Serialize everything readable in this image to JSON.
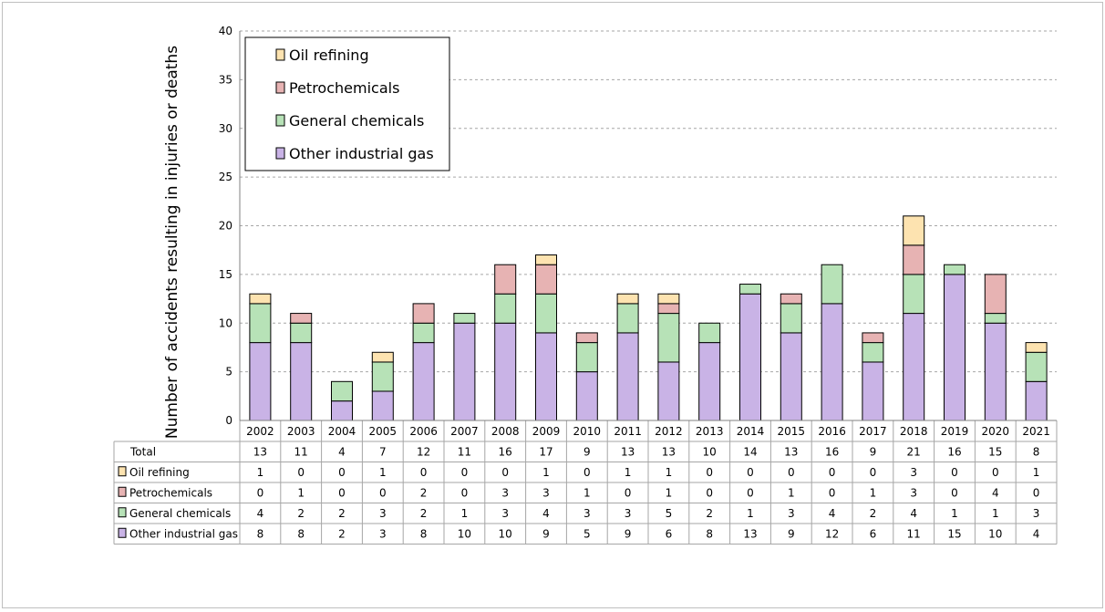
{
  "chart_data": {
    "type": "bar",
    "stacked": true,
    "title": "",
    "xlabel": "",
    "ylabel": "Number of accidents resulting in injuries or deaths",
    "ylim": [
      0,
      40
    ],
    "yticks": [
      0,
      5,
      10,
      15,
      20,
      25,
      30,
      35,
      40
    ],
    "grid": "horizontal dashed",
    "legend_position": "top-left",
    "categories": [
      "2002",
      "2003",
      "2004",
      "2005",
      "2006",
      "2007",
      "2008",
      "2009",
      "2010",
      "2011",
      "2012",
      "2013",
      "2014",
      "2015",
      "2016",
      "2017",
      "2018",
      "2019",
      "2020",
      "2021"
    ],
    "series": [
      {
        "name": "Other industrial gas",
        "color": "#c9b3e6",
        "values": [
          8,
          8,
          2,
          3,
          8,
          10,
          10,
          9,
          5,
          9,
          6,
          8,
          13,
          9,
          12,
          6,
          11,
          15,
          10,
          4
        ]
      },
      {
        "name": "General chemicals",
        "color": "#b7e2b7",
        "values": [
          4,
          2,
          2,
          3,
          2,
          1,
          3,
          4,
          3,
          3,
          5,
          2,
          1,
          3,
          4,
          2,
          4,
          1,
          1,
          3
        ]
      },
      {
        "name": "Petrochemicals",
        "color": "#e7b3b3",
        "values": [
          0,
          1,
          0,
          0,
          2,
          0,
          3,
          3,
          1,
          0,
          1,
          0,
          0,
          1,
          0,
          1,
          3,
          0,
          4,
          0
        ]
      },
      {
        "name": "Oil refining",
        "color": "#fde3b0",
        "values": [
          1,
          0,
          0,
          1,
          0,
          0,
          0,
          1,
          0,
          1,
          1,
          0,
          0,
          0,
          0,
          0,
          3,
          0,
          0,
          1
        ]
      }
    ],
    "table": {
      "total_label": "Total",
      "totals": [
        13,
        11,
        4,
        7,
        12,
        11,
        16,
        17,
        9,
        13,
        13,
        10,
        14,
        13,
        16,
        9,
        21,
        16,
        15,
        8
      ]
    }
  }
}
